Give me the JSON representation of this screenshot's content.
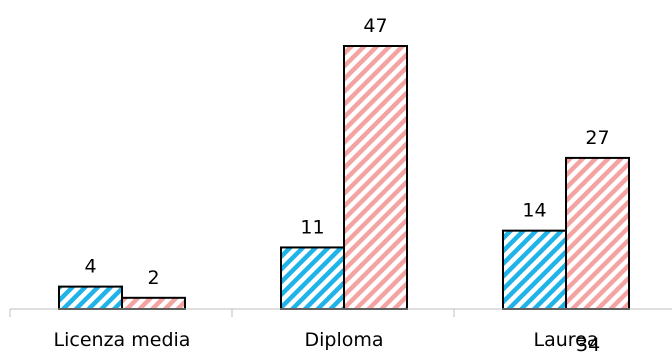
{
  "chart_data": {
    "type": "bar",
    "categories": [
      "Licenza media",
      "Diploma",
      "Laurea"
    ],
    "series": [
      {
        "values": [
          4,
          11,
          14
        ],
        "color": "#1fb3e8",
        "pattern": "diagonal-stripes"
      },
      {
        "values": [
          2,
          47,
          27
        ],
        "color": "#f4a3a3",
        "pattern": "diagonal-stripes"
      }
    ],
    "ylim": [
      0,
      47
    ],
    "grid": false,
    "legend": "none",
    "axis_color": "#bfbfbf",
    "bar_outline": "#000000"
  },
  "page_number": "34"
}
